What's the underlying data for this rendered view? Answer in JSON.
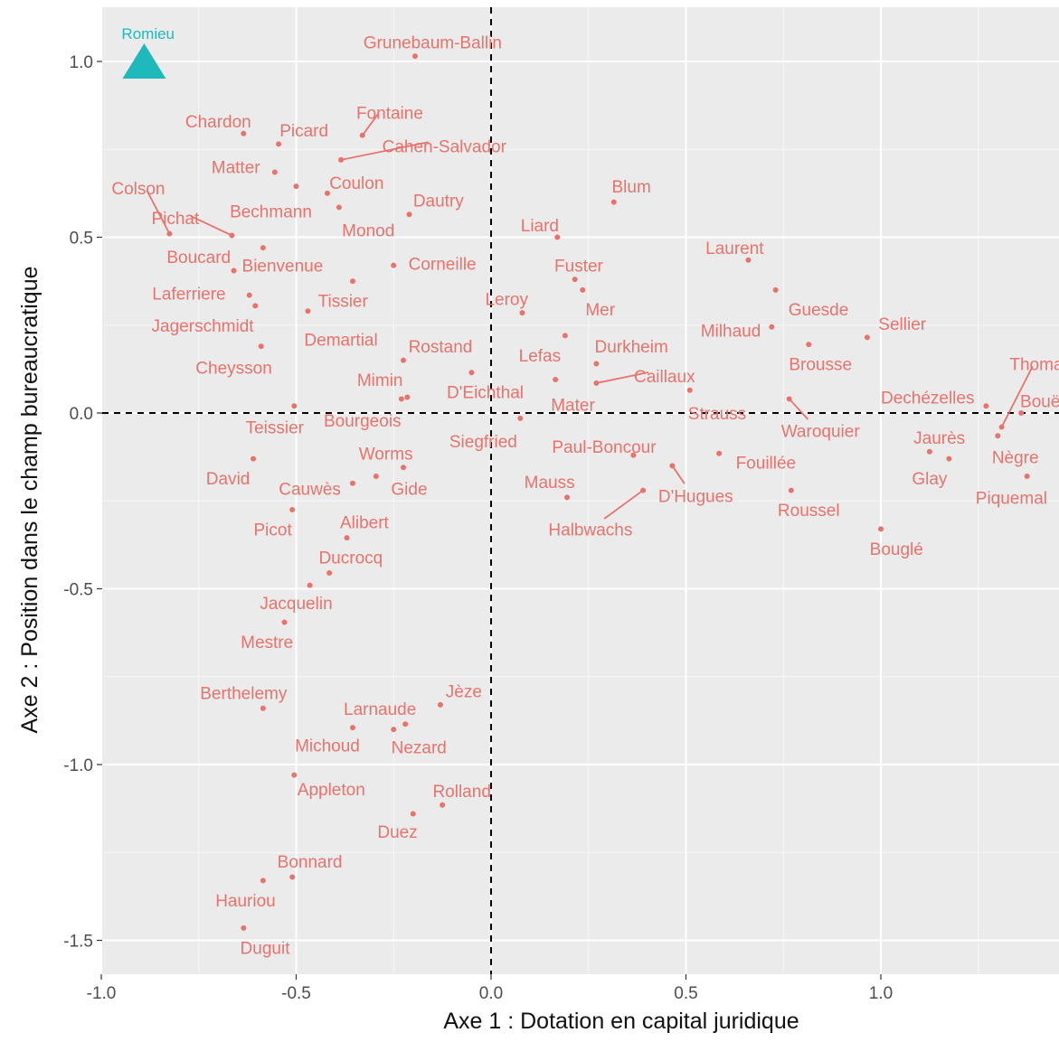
{
  "chart_data": {
    "type": "scatter",
    "title": "",
    "xlabel": "Axe 1 : Dotation en capital juridique",
    "ylabel": "Axe 2 : Position dans le champ bureaucratique",
    "xlim": [
      -1.0,
      1.45
    ],
    "ylim": [
      -1.62,
      1.12
    ],
    "xticks": [
      -1.0,
      -0.5,
      0.0,
      0.5,
      1.0
    ],
    "xtick_labels": [
      "-1.0",
      "-0.5",
      "0.0",
      "0.5",
      "1.0"
    ],
    "yticks": [
      -1.5,
      -1.0,
      -0.5,
      0.0,
      0.5,
      1.0
    ],
    "ytick_labels": [
      "-1.5",
      "-1.0",
      "-0.5",
      "0.0",
      "0.5",
      "1.0"
    ],
    "reference_lines": {
      "x": 0,
      "y": 0,
      "style": "dashed"
    },
    "grid": true,
    "colors": {
      "points": "#e8736c",
      "supplementary": "#1fb9bb",
      "panel": "#ebebeb",
      "grid": "#ffffff"
    },
    "supplementary_point": {
      "label": "Romieu",
      "x": -0.89,
      "y": 1.0,
      "shape": "triangle",
      "lx": -0.88,
      "ly": 1.08
    },
    "points": [
      {
        "label": "Grunebaum-Ballin",
        "x": -0.195,
        "y": 1.015,
        "lx": -0.15,
        "ly": 1.055
      },
      {
        "label": "Chardon",
        "x": -0.635,
        "y": 0.795,
        "lx": -0.7,
        "ly": 0.83
      },
      {
        "label": "Picard",
        "x": -0.545,
        "y": 0.765,
        "lx": -0.48,
        "ly": 0.805
      },
      {
        "label": "Fontaine",
        "x": -0.33,
        "y": 0.79,
        "lx": -0.26,
        "ly": 0.855,
        "line": true
      },
      {
        "label": "Cahen-Salvador",
        "x": -0.385,
        "y": 0.72,
        "lx": -0.12,
        "ly": 0.76,
        "line": true
      },
      {
        "label": "Matter",
        "x": -0.555,
        "y": 0.685,
        "lx": -0.655,
        "ly": 0.7
      },
      {
        "label": "Coulon",
        "x": -0.42,
        "y": 0.625,
        "lx": -0.345,
        "ly": 0.655
      },
      {
        "label": "Colson",
        "x": -0.825,
        "y": 0.51,
        "lx": -0.905,
        "ly": 0.64,
        "line": true
      },
      {
        "label": "Dautry",
        "x": -0.21,
        "y": 0.565,
        "lx": -0.135,
        "ly": 0.605
      },
      {
        "label": "Blum",
        "x": 0.315,
        "y": 0.6,
        "lx": 0.36,
        "ly": 0.645
      },
      {
        "label": "Pichat",
        "x": -0.665,
        "y": 0.505,
        "lx": -0.81,
        "ly": 0.555,
        "line": true
      },
      {
        "label": "Bechmann",
        "x": -0.39,
        "y": 0.585,
        "lx": -0.565,
        "ly": 0.575
      },
      {
        "label": "Monod",
        "x": -0.5,
        "y": 0.645,
        "lx": -0.315,
        "ly": 0.52
      },
      {
        "label": "Liard",
        "x": 0.17,
        "y": 0.5,
        "lx": 0.125,
        "ly": 0.535
      },
      {
        "label": "Laurent",
        "x": 0.66,
        "y": 0.435,
        "lx": 0.625,
        "ly": 0.47
      },
      {
        "label": "Boucard",
        "x": -0.585,
        "y": 0.47,
        "lx": -0.75,
        "ly": 0.445
      },
      {
        "label": "Bienvenue",
        "x": -0.66,
        "y": 0.405,
        "lx": -0.535,
        "ly": 0.42
      },
      {
        "label": "Corneille",
        "x": -0.25,
        "y": 0.42,
        "lx": -0.125,
        "ly": 0.425
      },
      {
        "label": "Fuster",
        "x": 0.215,
        "y": 0.38,
        "lx": 0.225,
        "ly": 0.42
      },
      {
        "label": "Laferriere",
        "x": -0.62,
        "y": 0.335,
        "lx": -0.775,
        "ly": 0.34
      },
      {
        "label": "Tissier",
        "x": -0.355,
        "y": 0.375,
        "lx": -0.38,
        "ly": 0.32
      },
      {
        "label": "Guesde",
        "x": 0.73,
        "y": 0.35,
        "lx": 0.84,
        "ly": 0.295
      },
      {
        "label": "Leroy",
        "x": 0.08,
        "y": 0.285,
        "lx": 0.04,
        "ly": 0.325
      },
      {
        "label": "Mer",
        "x": 0.235,
        "y": 0.35,
        "lx": 0.28,
        "ly": 0.295
      },
      {
        "label": "Jagerschmidt",
        "x": -0.605,
        "y": 0.305,
        "lx": -0.74,
        "ly": 0.25
      },
      {
        "label": "Demartial",
        "x": -0.47,
        "y": 0.29,
        "lx": -0.385,
        "ly": 0.21
      },
      {
        "label": "Milhaud",
        "x": 0.72,
        "y": 0.245,
        "lx": 0.615,
        "ly": 0.235
      },
      {
        "label": "Sellier",
        "x": 0.965,
        "y": 0.215,
        "lx": 1.055,
        "ly": 0.255
      },
      {
        "label": "Rostand",
        "x": -0.225,
        "y": 0.15,
        "lx": -0.13,
        "ly": 0.19
      },
      {
        "label": "Durkheim",
        "x": 0.27,
        "y": 0.14,
        "lx": 0.36,
        "ly": 0.19
      },
      {
        "label": "Lefas",
        "x": 0.19,
        "y": 0.22,
        "lx": 0.125,
        "ly": 0.165
      },
      {
        "label": "Brousse",
        "x": 0.815,
        "y": 0.195,
        "lx": 0.845,
        "ly": 0.14
      },
      {
        "label": "Cheysson",
        "x": -0.59,
        "y": 0.19,
        "lx": -0.66,
        "ly": 0.13
      },
      {
        "label": "Thomas",
        "x": 1.31,
        "y": -0.04,
        "lx": 1.41,
        "ly": 0.14,
        "line": true
      },
      {
        "label": "Mimin",
        "x": -0.215,
        "y": 0.045,
        "lx": -0.285,
        "ly": 0.095
      },
      {
        "label": "D'Eichthal",
        "x": -0.05,
        "y": 0.115,
        "lx": -0.015,
        "ly": 0.06
      },
      {
        "label": "Caillaux",
        "x": 0.27,
        "y": 0.085,
        "lx": 0.445,
        "ly": 0.105,
        "line": true
      },
      {
        "label": "Dechézelles",
        "x": 1.27,
        "y": 0.02,
        "lx": 1.12,
        "ly": 0.045
      },
      {
        "label": "Bouët",
        "x": 1.36,
        "y": 0.0,
        "lx": 1.415,
        "ly": 0.035
      },
      {
        "label": "Mater",
        "x": 0.165,
        "y": 0.095,
        "lx": 0.21,
        "ly": 0.025
      },
      {
        "label": "Strauss",
        "x": 0.51,
        "y": 0.065,
        "lx": 0.58,
        "ly": 0.0
      },
      {
        "label": "Teissier",
        "x": -0.505,
        "y": 0.02,
        "lx": -0.555,
        "ly": -0.04
      },
      {
        "label": "Bourgeois",
        "x": -0.23,
        "y": 0.04,
        "lx": -0.33,
        "ly": -0.02
      },
      {
        "label": "Waroquier",
        "x": 0.765,
        "y": 0.04,
        "lx": 0.845,
        "ly": -0.05,
        "line": true
      },
      {
        "label": "Siegfried",
        "x": 0.075,
        "y": -0.015,
        "lx": -0.02,
        "ly": -0.08
      },
      {
        "label": "Jaurès",
        "x": 1.125,
        "y": -0.11,
        "lx": 1.15,
        "ly": -0.07
      },
      {
        "label": "Nègre",
        "x": 1.3,
        "y": -0.065,
        "lx": 1.345,
        "ly": -0.125
      },
      {
        "label": "Paul-Boncour",
        "x": 0.365,
        "y": -0.12,
        "lx": 0.29,
        "ly": -0.095
      },
      {
        "label": "Worms",
        "x": -0.225,
        "y": -0.155,
        "lx": -0.27,
        "ly": -0.115
      },
      {
        "label": "Fouillée",
        "x": 0.585,
        "y": -0.115,
        "lx": 0.705,
        "ly": -0.14
      },
      {
        "label": "Glay",
        "x": 1.175,
        "y": -0.13,
        "lx": 1.125,
        "ly": -0.185
      },
      {
        "label": "David",
        "x": -0.61,
        "y": -0.13,
        "lx": -0.675,
        "ly": -0.185
      },
      {
        "label": "Cauwès",
        "x": -0.355,
        "y": -0.2,
        "lx": -0.465,
        "ly": -0.215
      },
      {
        "label": "Gide",
        "x": -0.295,
        "y": -0.18,
        "lx": -0.21,
        "ly": -0.215
      },
      {
        "label": "Mauss",
        "x": 0.195,
        "y": -0.24,
        "lx": 0.15,
        "ly": -0.195
      },
      {
        "label": "Piquemal",
        "x": 1.375,
        "y": -0.18,
        "lx": 1.335,
        "ly": -0.24
      },
      {
        "label": "D'Hugues",
        "x": 0.465,
        "y": -0.15,
        "lx": 0.525,
        "ly": -0.235,
        "line": true
      },
      {
        "label": "Roussel",
        "x": 0.77,
        "y": -0.22,
        "lx": 0.815,
        "ly": -0.275
      },
      {
        "label": "Halbwachs",
        "x": 0.39,
        "y": -0.22,
        "lx": 0.255,
        "ly": -0.33,
        "line": true
      },
      {
        "label": "Picot",
        "x": -0.51,
        "y": -0.275,
        "lx": -0.56,
        "ly": -0.33
      },
      {
        "label": "Alibert",
        "x": -0.37,
        "y": -0.355,
        "lx": -0.325,
        "ly": -0.31
      },
      {
        "label": "Bouglé",
        "x": 1.0,
        "y": -0.33,
        "lx": 1.04,
        "ly": -0.385
      },
      {
        "label": "Ducrocq",
        "x": -0.415,
        "y": -0.455,
        "lx": -0.36,
        "ly": -0.41
      },
      {
        "label": "Jacquelin",
        "x": -0.465,
        "y": -0.49,
        "lx": -0.5,
        "ly": -0.54
      },
      {
        "label": "Mestre",
        "x": -0.53,
        "y": -0.595,
        "lx": -0.575,
        "ly": -0.65
      },
      {
        "label": "Jèze",
        "x": -0.13,
        "y": -0.83,
        "lx": -0.07,
        "ly": -0.79
      },
      {
        "label": "Berthelemy",
        "x": -0.585,
        "y": -0.84,
        "lx": -0.635,
        "ly": -0.795
      },
      {
        "label": "Larnaude",
        "x": -0.22,
        "y": -0.885,
        "lx": -0.285,
        "ly": -0.84
      },
      {
        "label": "Michoud",
        "x": -0.355,
        "y": -0.895,
        "lx": -0.42,
        "ly": -0.945
      },
      {
        "label": "Nezard",
        "x": -0.25,
        "y": -0.9,
        "lx": -0.185,
        "ly": -0.95
      },
      {
        "label": "Appleton",
        "x": -0.505,
        "y": -1.03,
        "lx": -0.41,
        "ly": -1.07
      },
      {
        "label": "Rolland",
        "x": -0.125,
        "y": -1.115,
        "lx": -0.075,
        "ly": -1.075
      },
      {
        "label": "Duez",
        "x": -0.2,
        "y": -1.14,
        "lx": -0.24,
        "ly": -1.19
      },
      {
        "label": "Bonnard",
        "x": -0.51,
        "y": -1.32,
        "lx": -0.465,
        "ly": -1.275
      },
      {
        "label": "Hauriou",
        "x": -0.585,
        "y": -1.33,
        "lx": -0.63,
        "ly": -1.385
      },
      {
        "label": "Duguit",
        "x": -0.635,
        "y": -1.465,
        "lx": -0.58,
        "ly": -1.52
      }
    ]
  }
}
